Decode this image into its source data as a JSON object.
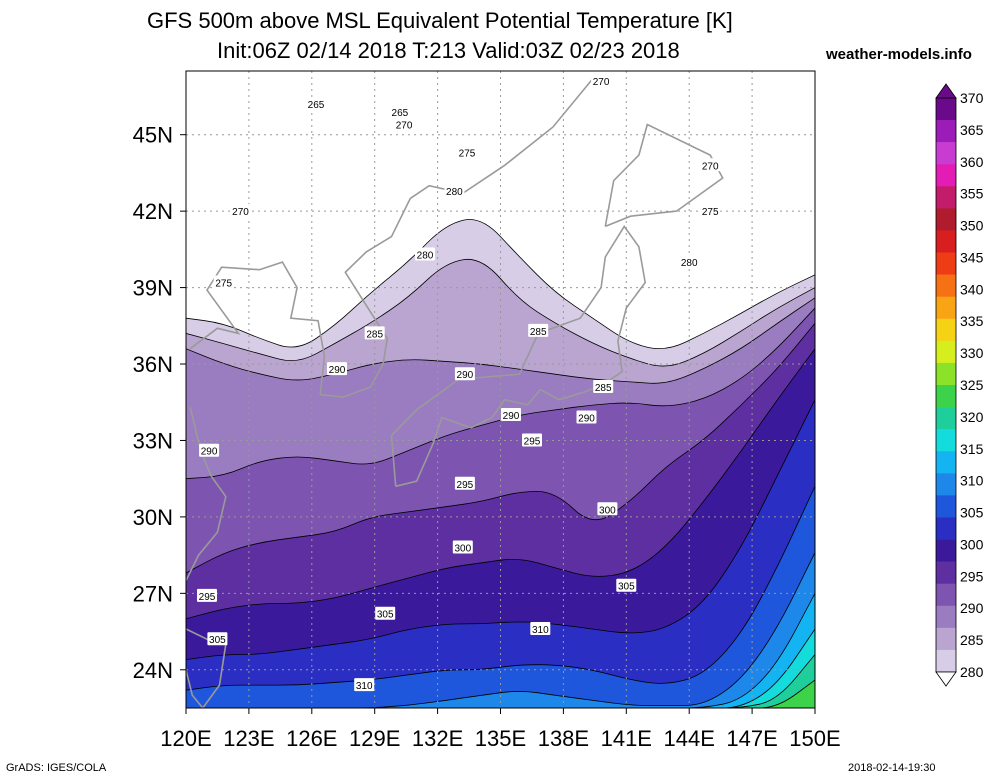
{
  "header": {
    "title_line1": "GFS 500m above MSL Equivalent Potential Temperature [K]",
    "title_line2": "Init:06Z 02/14 2018 T:213 Valid:03Z 02/23 2018",
    "site": "weather-models.info"
  },
  "footer": {
    "left": "GrADS: IGES/COLA",
    "right": "2018-02-14-19:30"
  },
  "chart_data": {
    "type": "heatmap",
    "title": "GFS 500m above MSL Equivalent Potential Temperature [K]",
    "subtitle": "Init:06Z 02/14 2018 T:213 Valid:03Z 02/23 2018",
    "xlabel": "",
    "ylabel": "",
    "xlim": [
      120,
      150
    ],
    "ylim": [
      22.5,
      47.5
    ],
    "x_ticks": [
      "120E",
      "123E",
      "126E",
      "129E",
      "132E",
      "135E",
      "138E",
      "141E",
      "144E",
      "147E",
      "150E"
    ],
    "y_ticks": [
      "24N",
      "27N",
      "30N",
      "33N",
      "36N",
      "39N",
      "42N",
      "45N"
    ],
    "grid": true,
    "colorbar": {
      "levels": [
        280,
        285,
        290,
        295,
        300,
        305,
        310,
        315,
        320,
        325,
        330,
        335,
        340,
        345,
        350,
        355,
        360,
        365,
        370
      ],
      "labels": [
        "370",
        "365",
        "360",
        "355",
        "350",
        "345",
        "340",
        "335",
        "330",
        "325",
        "320",
        "315",
        "310",
        "305",
        "300",
        "295",
        "290",
        "285",
        "280"
      ],
      "colors": [
        "#d8cde6",
        "#b9a5d0",
        "#9a7cc0",
        "#7d55b0",
        "#5d2fa0",
        "#3a1a9a",
        "#2a2ec2",
        "#1e56dc",
        "#1e88ea",
        "#14b4f2",
        "#14dcdc",
        "#1ecf9c",
        "#3cd24a",
        "#8ce228",
        "#d6ee1e",
        "#f6d214",
        "#f8a414",
        "#f67014",
        "#ee3c14",
        "#d81e1e",
        "#b01c2e",
        "#c21c6a",
        "#e21cb4",
        "#c83cd2",
        "#9c1cba",
        "#6a0a8a"
      ]
    },
    "contour_labels": [
      "265",
      "270",
      "265",
      "270",
      "275",
      "270",
      "270",
      "275",
      "280",
      "280",
      "275",
      "280",
      "285",
      "285",
      "285",
      "290",
      "290",
      "290",
      "290",
      "295",
      "290",
      "295",
      "300",
      "300",
      "305",
      "295",
      "305",
      "305",
      "310",
      "310"
    ],
    "bands": [
      {
        "value": 280,
        "lat": [
          37.8,
          37.6,
          37.0,
          36.5,
          37.5,
          38.8,
          40.0,
          41.5,
          41.8,
          40.2,
          38.8,
          37.8,
          36.8,
          36.5,
          37.2,
          38.0,
          38.8,
          39.5
        ]
      },
      {
        "value": 285,
        "lat": [
          37.2,
          36.8,
          36.4,
          36.0,
          36.8,
          37.6,
          38.6,
          40.0,
          40.2,
          38.5,
          37.6,
          36.8,
          36.2,
          35.8,
          36.4,
          37.3,
          38.2,
          39.0
        ]
      },
      {
        "value": 290,
        "lat": [
          36.6,
          36.0,
          35.6,
          35.3,
          35.6,
          36.0,
          36.2,
          36.1,
          36.0,
          35.8,
          35.6,
          35.4,
          35.3,
          35.2,
          35.8,
          36.6,
          37.6,
          38.6
        ]
      },
      {
        "value": 295,
        "lat": [
          31.5,
          31.6,
          32.2,
          32.4,
          32.2,
          32.0,
          32.6,
          33.2,
          33.6,
          34.0,
          34.2,
          34.4,
          34.5,
          34.3,
          34.6,
          35.4,
          36.6,
          38.2
        ]
      },
      {
        "value": 300,
        "lat": [
          27.8,
          28.6,
          29.0,
          29.2,
          29.4,
          30.0,
          30.2,
          30.4,
          30.6,
          31.0,
          31.0,
          29.6,
          30.6,
          32.0,
          33.0,
          34.4,
          35.8,
          37.6
        ]
      },
      {
        "value": 305,
        "lat": [
          26.0,
          26.4,
          26.6,
          26.6,
          26.8,
          27.2,
          27.6,
          28.0,
          28.2,
          28.4,
          28.0,
          27.6,
          27.8,
          28.8,
          30.6,
          32.6,
          34.6,
          36.6
        ]
      },
      {
        "value": 310,
        "lat": [
          24.4,
          24.6,
          24.6,
          24.8,
          25.0,
          25.2,
          25.6,
          25.8,
          25.8,
          25.9,
          25.8,
          25.6,
          25.4,
          25.6,
          26.6,
          28.8,
          31.6,
          34.6
        ]
      },
      {
        "value": 315,
        "lat": [
          23.2,
          23.4,
          23.4,
          23.4,
          23.5,
          23.6,
          23.8,
          24.0,
          24.0,
          24.2,
          24.2,
          24.0,
          23.6,
          23.4,
          23.8,
          25.4,
          28.0,
          31.2
        ]
      },
      {
        "value": 320,
        "lat": [
          22.5,
          22.5,
          22.5,
          22.5,
          22.5,
          22.5,
          22.6,
          22.8,
          23.0,
          23.2,
          23.0,
          22.8,
          22.6,
          22.6,
          22.6,
          23.6,
          25.6,
          28.6
        ]
      },
      {
        "value": 325,
        "lat": [
          22.5,
          22.5,
          22.5,
          22.5,
          22.5,
          22.5,
          22.5,
          22.5,
          22.5,
          22.5,
          22.5,
          22.5,
          22.5,
          22.5,
          22.5,
          22.8,
          24.2,
          27.0
        ]
      },
      {
        "value": 330,
        "lat": [
          22.5,
          22.5,
          22.5,
          22.5,
          22.5,
          22.5,
          22.5,
          22.5,
          22.5,
          22.5,
          22.5,
          22.5,
          22.5,
          22.5,
          22.5,
          22.5,
          23.4,
          25.6
        ]
      },
      {
        "value": 335,
        "lat": [
          22.5,
          22.5,
          22.5,
          22.5,
          22.5,
          22.5,
          22.5,
          22.5,
          22.5,
          22.5,
          22.5,
          22.5,
          22.5,
          22.5,
          22.5,
          22.5,
          22.8,
          24.6
        ]
      },
      {
        "value": 340,
        "lat": [
          22.5,
          22.5,
          22.5,
          22.5,
          22.5,
          22.5,
          22.5,
          22.5,
          22.5,
          22.5,
          22.5,
          22.5,
          22.5,
          22.5,
          22.5,
          22.5,
          22.5,
          23.6
        ]
      }
    ],
    "band_lons": [
      120,
      121.8,
      123.5,
      125.3,
      127.1,
      128.8,
      130.6,
      132.4,
      134.1,
      135.9,
      137.6,
      139.4,
      141.2,
      142.9,
      144.7,
      146.5,
      148.2,
      150
    ]
  }
}
